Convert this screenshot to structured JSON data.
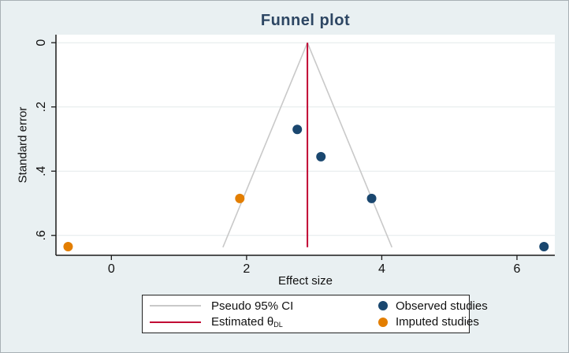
{
  "figure": {
    "title": "Funnel plot",
    "xlabel": "Effect size",
    "ylabel": "Standard error"
  },
  "legend": {
    "pseudo_ci": "Pseudo 95% CI",
    "estimate_base": "Estimated θ",
    "estimate_sub": "DL",
    "observed": "Observed studies",
    "imputed": "Imputed studies"
  },
  "colors": {
    "background": "#e9f0f2",
    "plot_background": "#ffffff",
    "title": "#2d4663",
    "axis": "#1a1a1a",
    "gridline": "#e4e9ea",
    "observed": "#1a476f",
    "imputed": "#e37e00",
    "estimate_line": "#c10534",
    "pseudo_ci_line": "#c9c9c9"
  },
  "chart_data": {
    "type": "scatter",
    "title": "Funnel plot",
    "xlabel": "Effect size",
    "ylabel": "Standard error",
    "xlim": [
      -0.82,
      6.56
    ],
    "ylim": [
      -0.025,
      0.662
    ],
    "y_axis_inverted": true,
    "grid": "horizontal",
    "legend_position": "bottom",
    "x_ticks": [
      {
        "v": 0,
        "label": "0"
      },
      {
        "v": 2,
        "label": "2"
      },
      {
        "v": 4,
        "label": "4"
      },
      {
        "v": 6,
        "label": "6"
      }
    ],
    "y_ticks": [
      {
        "v": 0,
        "label": "0"
      },
      {
        "v": 0.2,
        "label": ".2"
      },
      {
        "v": 0.4,
        "label": ".4"
      },
      {
        "v": 0.6,
        "label": ".6"
      }
    ],
    "series": [
      {
        "name": "Observed studies",
        "marker": "circle",
        "color": "#1a476f",
        "points": [
          [
            2.75,
            0.27
          ],
          [
            3.1,
            0.355
          ],
          [
            3.85,
            0.485
          ],
          [
            6.4,
            0.635
          ]
        ]
      },
      {
        "name": "Imputed studies",
        "marker": "circle",
        "color": "#e37e00",
        "points": [
          [
            -0.64,
            0.635
          ],
          [
            1.9,
            0.485
          ]
        ]
      }
    ],
    "estimate_line": {
      "name": "Estimated θDL",
      "x": 2.9,
      "y_from": 0,
      "y_to": 0.637,
      "color": "#c10534"
    },
    "pseudo_ci": {
      "name": "Pseudo 95% CI",
      "color": "#c9c9c9",
      "lines": [
        [
          [
            2.9,
            0
          ],
          [
            1.65,
            0.637
          ]
        ],
        [
          [
            2.9,
            0
          ],
          [
            4.15,
            0.637
          ]
        ]
      ]
    }
  }
}
